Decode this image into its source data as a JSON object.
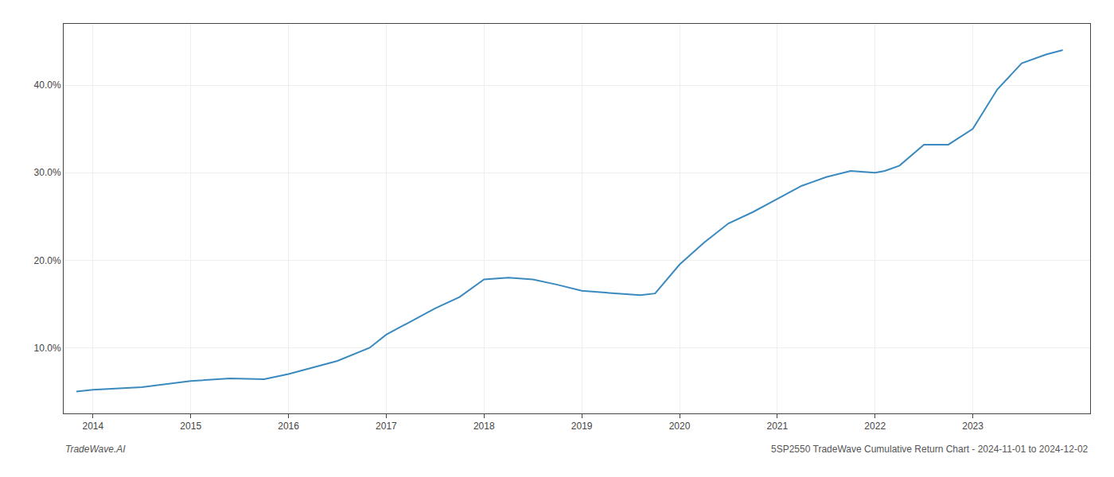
{
  "chart_data": {
    "type": "line",
    "x": [
      2013.83,
      2014.0,
      2014.5,
      2015.0,
      2015.4,
      2015.75,
      2016.0,
      2016.5,
      2016.83,
      2017.0,
      2017.5,
      2017.75,
      2018.0,
      2018.25,
      2018.5,
      2018.75,
      2019.0,
      2019.25,
      2019.5,
      2019.6,
      2019.75,
      2020.0,
      2020.25,
      2020.5,
      2020.75,
      2021.0,
      2021.25,
      2021.5,
      2021.75,
      2022.0,
      2022.1,
      2022.25,
      2022.5,
      2022.75,
      2023.0,
      2023.25,
      2023.5,
      2023.75,
      2023.92
    ],
    "values": [
      5.0,
      5.2,
      5.5,
      6.2,
      6.5,
      6.4,
      7.0,
      8.5,
      10.0,
      11.5,
      14.5,
      15.8,
      17.8,
      18.0,
      17.8,
      17.2,
      16.5,
      16.3,
      16.1,
      16.0,
      16.2,
      19.5,
      22.0,
      24.2,
      25.5,
      27.0,
      28.5,
      29.5,
      30.2,
      30.0,
      30.2,
      30.8,
      33.2,
      33.2,
      35.0,
      39.5,
      42.5,
      43.5,
      44.0
    ],
    "color": "#3a8abf",
    "xlim": [
      2013.7,
      2024.2
    ],
    "ylim": [
      2.5,
      47.0
    ],
    "xticks": [
      2014,
      2015,
      2016,
      2017,
      2018,
      2019,
      2020,
      2021,
      2022,
      2023
    ],
    "yticks": [
      {
        "value": 10,
        "label": "10.0%"
      },
      {
        "value": 20,
        "label": "20.0%"
      },
      {
        "value": 30,
        "label": "30.0%"
      },
      {
        "value": 40,
        "label": "40.0%"
      }
    ],
    "grid": true,
    "annotations": [
      "TradeWave.AI",
      "5SP2550 TradeWave Cumulative Return Chart - 2024-11-01 to 2024-12-02"
    ]
  }
}
